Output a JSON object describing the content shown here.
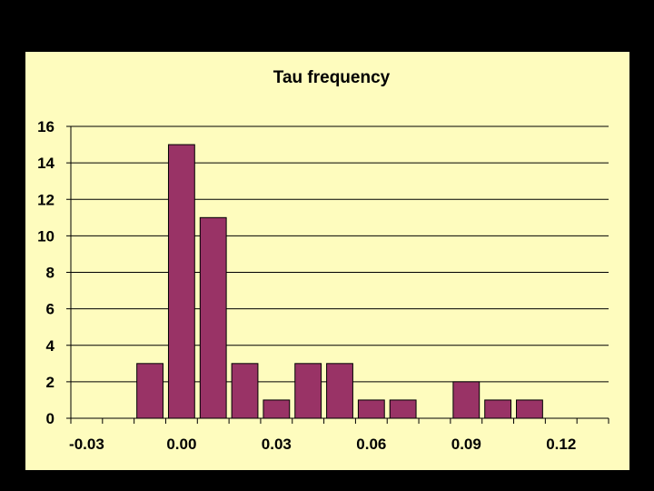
{
  "colors": {
    "background": "#000000",
    "plot_area": "#fefcbe",
    "bar_fill": "#993366",
    "gridline": "#000000"
  },
  "chart_data": {
    "type": "bar",
    "title": "Tau frequency",
    "xlabel": "",
    "ylabel": "",
    "x_tick_labels": [
      "-0.03",
      "0.00",
      "0.03",
      "0.06",
      "0.09",
      "0.12"
    ],
    "y_tick_labels": [
      "0",
      "2",
      "4",
      "6",
      "8",
      "10",
      "12",
      "14",
      "16"
    ],
    "ylim": [
      0,
      16
    ],
    "grid": "horizontal",
    "legend": "none",
    "bins": [
      -0.03,
      -0.02,
      -0.01,
      0.0,
      0.01,
      0.02,
      0.03,
      0.04,
      0.05,
      0.06,
      0.07,
      0.08,
      0.09,
      0.1,
      0.11,
      0.12,
      0.13
    ],
    "values": [
      0,
      0,
      3,
      15,
      11,
      3,
      1,
      3,
      3,
      1,
      1,
      0,
      2,
      1,
      1,
      0,
      0
    ]
  }
}
